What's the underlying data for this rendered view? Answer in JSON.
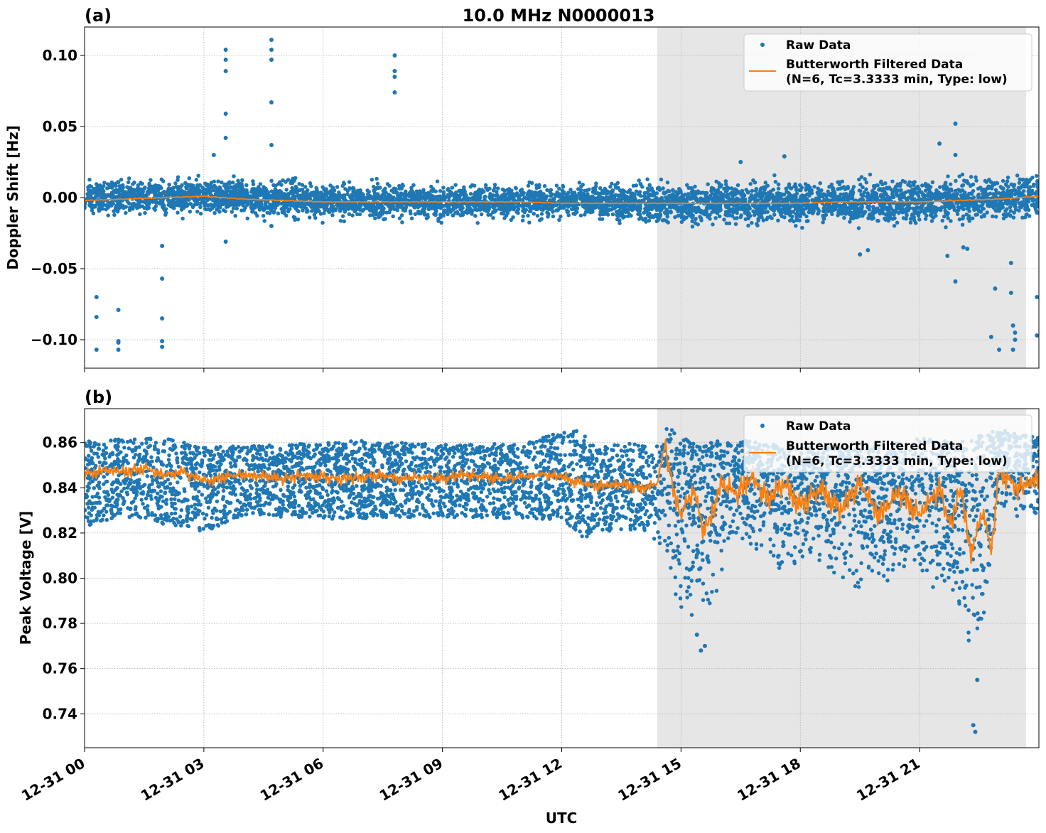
{
  "figure": {
    "suptitle": "10.0 MHz N0000013",
    "xlabel": "UTC",
    "x_tick_labels": [
      "12-31 00",
      "12-31 03",
      "12-31 06",
      "12-31 09",
      "12-31 12",
      "12-31 15",
      "12-31 18",
      "12-31 21"
    ],
    "colors": {
      "raw": "#1f77b4",
      "filtered": "#ff7f0e",
      "shade": "#e6e6e6",
      "grid": "#b0b0b0"
    }
  },
  "chart_data": [
    {
      "type": "scatter",
      "panel_label": "(a)",
      "title": "10.0 MHz N0000013",
      "xlabel": "UTC",
      "ylabel": "Doppler Shift [Hz]",
      "x_unit": "hours since 12-31 00:00 UTC",
      "xlim": [
        0,
        24
      ],
      "ylim": [
        -0.12,
        0.12
      ],
      "x_ticks": [
        0,
        3,
        6,
        9,
        12,
        15,
        18,
        21
      ],
      "y_ticks": [
        -0.1,
        -0.05,
        0.0,
        0.05,
        0.1
      ],
      "y_tick_labels": [
        "−0.10",
        "−0.05",
        "0.00",
        "0.05",
        "0.10"
      ],
      "grid": true,
      "shaded_interval": [
        14.4,
        23.68
      ],
      "legend": {
        "position": "top-right",
        "entries": [
          "Raw Data",
          "Butterworth Filtered Data",
          "(N=6, Tc=3.3333 min, Type: low)"
        ]
      },
      "raw_band": {
        "center": [
          [
            0,
            0.0
          ],
          [
            3,
            0.001
          ],
          [
            6,
            -0.002
          ],
          [
            9,
            -0.003
          ],
          [
            12,
            -0.003
          ],
          [
            14.5,
            -0.004
          ],
          [
            18,
            -0.003
          ],
          [
            21,
            -0.003
          ],
          [
            24,
            0.001
          ]
        ],
        "halfwidth": [
          [
            0,
            0.012
          ],
          [
            6,
            0.012
          ],
          [
            12,
            0.011
          ],
          [
            15,
            0.014
          ],
          [
            24,
            0.015
          ]
        ]
      },
      "filtered_series": {
        "name": "Butterworth Filtered Data",
        "x": [
          0,
          1,
          2,
          3,
          4,
          5,
          6,
          7,
          8,
          9,
          10,
          11,
          12,
          13,
          14,
          15,
          16,
          17,
          18,
          19,
          20,
          21,
          22,
          23,
          24
        ],
        "y": [
          -0.002,
          -0.001,
          0.0,
          0.001,
          -0.001,
          -0.002,
          -0.003,
          -0.003,
          -0.003,
          -0.003,
          -0.003,
          -0.003,
          -0.004,
          -0.004,
          -0.004,
          -0.004,
          -0.004,
          -0.004,
          -0.004,
          -0.003,
          -0.003,
          -0.003,
          -0.002,
          -0.001,
          0.001
        ]
      },
      "outliers": {
        "x": [
          0.3,
          0.3,
          0.3,
          0.85,
          0.85,
          0.85,
          0.85,
          1.95,
          1.95,
          1.95,
          1.95,
          1.95,
          3.25,
          3.55,
          3.55,
          3.55,
          3.55,
          3.55,
          3.55,
          4.7,
          4.7,
          4.7,
          4.7,
          4.7,
          4.7,
          7.8,
          7.8,
          7.8,
          7.8,
          16.5,
          17.6,
          19.5,
          19.7,
          21.5,
          21.7,
          21.9,
          21.9,
          21.9,
          22.1,
          22.2,
          22.8,
          22.9,
          23.0,
          23.3,
          23.3,
          23.35,
          23.35,
          23.4,
          23.4,
          23.95,
          23.95
        ],
        "y": [
          -0.07,
          -0.084,
          -0.107,
          -0.079,
          -0.101,
          -0.102,
          -0.107,
          -0.034,
          -0.057,
          -0.085,
          -0.101,
          -0.105,
          0.03,
          0.104,
          0.097,
          0.089,
          0.059,
          0.042,
          -0.031,
          0.111,
          0.104,
          0.097,
          0.067,
          0.037,
          -0.02,
          0.1,
          0.089,
          0.085,
          0.074,
          0.025,
          0.029,
          -0.04,
          -0.037,
          0.038,
          -0.041,
          0.052,
          0.03,
          -0.059,
          -0.035,
          -0.036,
          -0.098,
          -0.064,
          -0.107,
          -0.046,
          -0.067,
          -0.09,
          -0.107,
          -0.095,
          -0.1,
          -0.07,
          -0.097
        ]
      }
    },
    {
      "type": "scatter",
      "panel_label": "(b)",
      "xlabel": "UTC",
      "ylabel": "Peak Voltage [V]",
      "x_unit": "hours since 12-31 00:00 UTC",
      "xlim": [
        0,
        24
      ],
      "ylim": [
        0.725,
        0.875
      ],
      "x_ticks": [
        0,
        3,
        6,
        9,
        12,
        15,
        18,
        21
      ],
      "y_ticks": [
        0.74,
        0.76,
        0.78,
        0.8,
        0.82,
        0.84,
        0.86
      ],
      "y_tick_labels": [
        "0.74",
        "0.76",
        "0.78",
        "0.80",
        "0.82",
        "0.84",
        "0.86"
      ],
      "grid": true,
      "shaded_interval": [
        14.4,
        23.68
      ],
      "legend": {
        "position": "top-right",
        "entries": [
          "Raw Data",
          "Butterworth Filtered Data",
          "(N=6, Tc=3.3333 min, Type: low)"
        ]
      },
      "raw_band": {
        "upper": [
          [
            0,
            0.861
          ],
          [
            2,
            0.862
          ],
          [
            3,
            0.858
          ],
          [
            5,
            0.859
          ],
          [
            7,
            0.861
          ],
          [
            9,
            0.859
          ],
          [
            11,
            0.86
          ],
          [
            12.3,
            0.866
          ],
          [
            13,
            0.86
          ],
          [
            14.4,
            0.859
          ],
          [
            14.6,
            0.868
          ],
          [
            15.5,
            0.858
          ],
          [
            16,
            0.862
          ],
          [
            18,
            0.858
          ],
          [
            20,
            0.858
          ],
          [
            21,
            0.862
          ],
          [
            22,
            0.86
          ],
          [
            23,
            0.866
          ],
          [
            24,
            0.862
          ]
        ],
        "lower": [
          [
            0,
            0.823
          ],
          [
            1,
            0.827
          ],
          [
            3,
            0.82
          ],
          [
            4,
            0.828
          ],
          [
            6,
            0.826
          ],
          [
            9,
            0.827
          ],
          [
            12,
            0.826
          ],
          [
            12.5,
            0.818
          ],
          [
            14,
            0.822
          ],
          [
            14.6,
            0.81
          ],
          [
            15.0,
            0.78
          ],
          [
            15.5,
            0.775
          ],
          [
            16.5,
            0.815
          ],
          [
            17.5,
            0.8
          ],
          [
            18.5,
            0.805
          ],
          [
            19.5,
            0.79
          ],
          [
            20.5,
            0.8
          ],
          [
            21.5,
            0.79
          ],
          [
            22.2,
            0.77
          ],
          [
            22.6,
            0.762
          ],
          [
            23.0,
            0.825
          ],
          [
            24,
            0.826
          ]
        ]
      },
      "filtered_series": {
        "name": "Butterworth Filtered Data",
        "x": [
          0,
          0.5,
          1,
          1.5,
          2,
          2.5,
          3,
          3.5,
          4,
          4.5,
          5,
          5.5,
          6,
          6.5,
          7,
          7.5,
          8,
          8.5,
          9,
          9.5,
          10,
          10.5,
          11,
          11.5,
          12,
          12.5,
          13,
          13.5,
          14,
          14.4,
          14.6,
          14.8,
          15.0,
          15.3,
          15.6,
          16.0,
          16.4,
          16.8,
          17.2,
          17.6,
          18.0,
          18.5,
          19.0,
          19.5,
          20.0,
          20.5,
          21.0,
          21.5,
          21.8,
          22.0,
          22.3,
          22.6,
          22.8,
          23.0,
          23.5,
          24
        ],
        "y": [
          0.846,
          0.848,
          0.847,
          0.849,
          0.846,
          0.847,
          0.843,
          0.845,
          0.846,
          0.845,
          0.844,
          0.846,
          0.845,
          0.844,
          0.845,
          0.846,
          0.844,
          0.845,
          0.844,
          0.846,
          0.845,
          0.844,
          0.845,
          0.846,
          0.845,
          0.842,
          0.841,
          0.842,
          0.84,
          0.842,
          0.86,
          0.84,
          0.828,
          0.84,
          0.82,
          0.842,
          0.838,
          0.845,
          0.835,
          0.842,
          0.832,
          0.84,
          0.83,
          0.842,
          0.828,
          0.838,
          0.828,
          0.84,
          0.822,
          0.842,
          0.812,
          0.83,
          0.812,
          0.848,
          0.84,
          0.845
        ]
      },
      "outliers": {
        "x": [
          15.5,
          15.6,
          15.4,
          22.35,
          22.4,
          22.45
        ],
        "y": [
          0.768,
          0.77,
          0.775,
          0.735,
          0.732,
          0.755
        ]
      }
    }
  ]
}
